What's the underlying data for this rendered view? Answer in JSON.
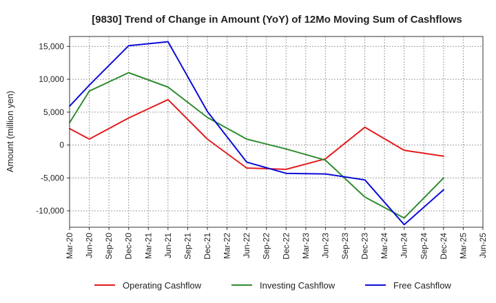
{
  "chart_data": {
    "type": "line",
    "title": "[9830]  Trend of Change in Amount (YoY) of 12Mo Moving Sum of Cashflows",
    "xlabel": "",
    "ylabel": "Amount (million yen)",
    "ylim": [
      -12500,
      16500
    ],
    "yticks": [
      15000,
      10000,
      5000,
      0,
      -5000,
      -10000
    ],
    "ytick_labels": [
      "15,000",
      "10,000",
      "5,000",
      "0",
      "-5,000",
      "-10,000"
    ],
    "categories": [
      "Mar-20",
      "Jun-20",
      "Sep-20",
      "Dec-20",
      "Mar-21",
      "Jun-21",
      "Sep-21",
      "Dec-21",
      "Mar-22",
      "Jun-22",
      "Sep-22",
      "Dec-22",
      "Mar-23",
      "Jun-23",
      "Sep-23",
      "Dec-23",
      "Mar-24",
      "Jun-24",
      "Sep-24",
      "Dec-24",
      "Mar-25",
      "Jun-25"
    ],
    "series": [
      {
        "name": "Operating Cashflow",
        "color": "#e31a1c",
        "values": [
          2500,
          900,
          null,
          4100,
          null,
          6900,
          null,
          900,
          null,
          -3500,
          null,
          -3700,
          null,
          -2100,
          null,
          2700,
          null,
          -800,
          null,
          -1700,
          null,
          null
        ]
      },
      {
        "name": "Investing Cashflow",
        "color": "#2e8b2e",
        "values": [
          3400,
          8200,
          null,
          11000,
          null,
          8800,
          null,
          4200,
          null,
          900,
          null,
          -600,
          null,
          -2300,
          null,
          -7900,
          null,
          -11100,
          null,
          -5000,
          null,
          null
        ]
      },
      {
        "name": "Free Cashflow",
        "color": "#0a0ad8",
        "values": [
          5900,
          9100,
          null,
          15100,
          null,
          15700,
          null,
          5100,
          null,
          -2600,
          null,
          -4300,
          null,
          -4400,
          null,
          -5300,
          null,
          -12100,
          null,
          -6800,
          null,
          null
        ]
      }
    ],
    "legend_position": "bottom",
    "grid": true
  }
}
